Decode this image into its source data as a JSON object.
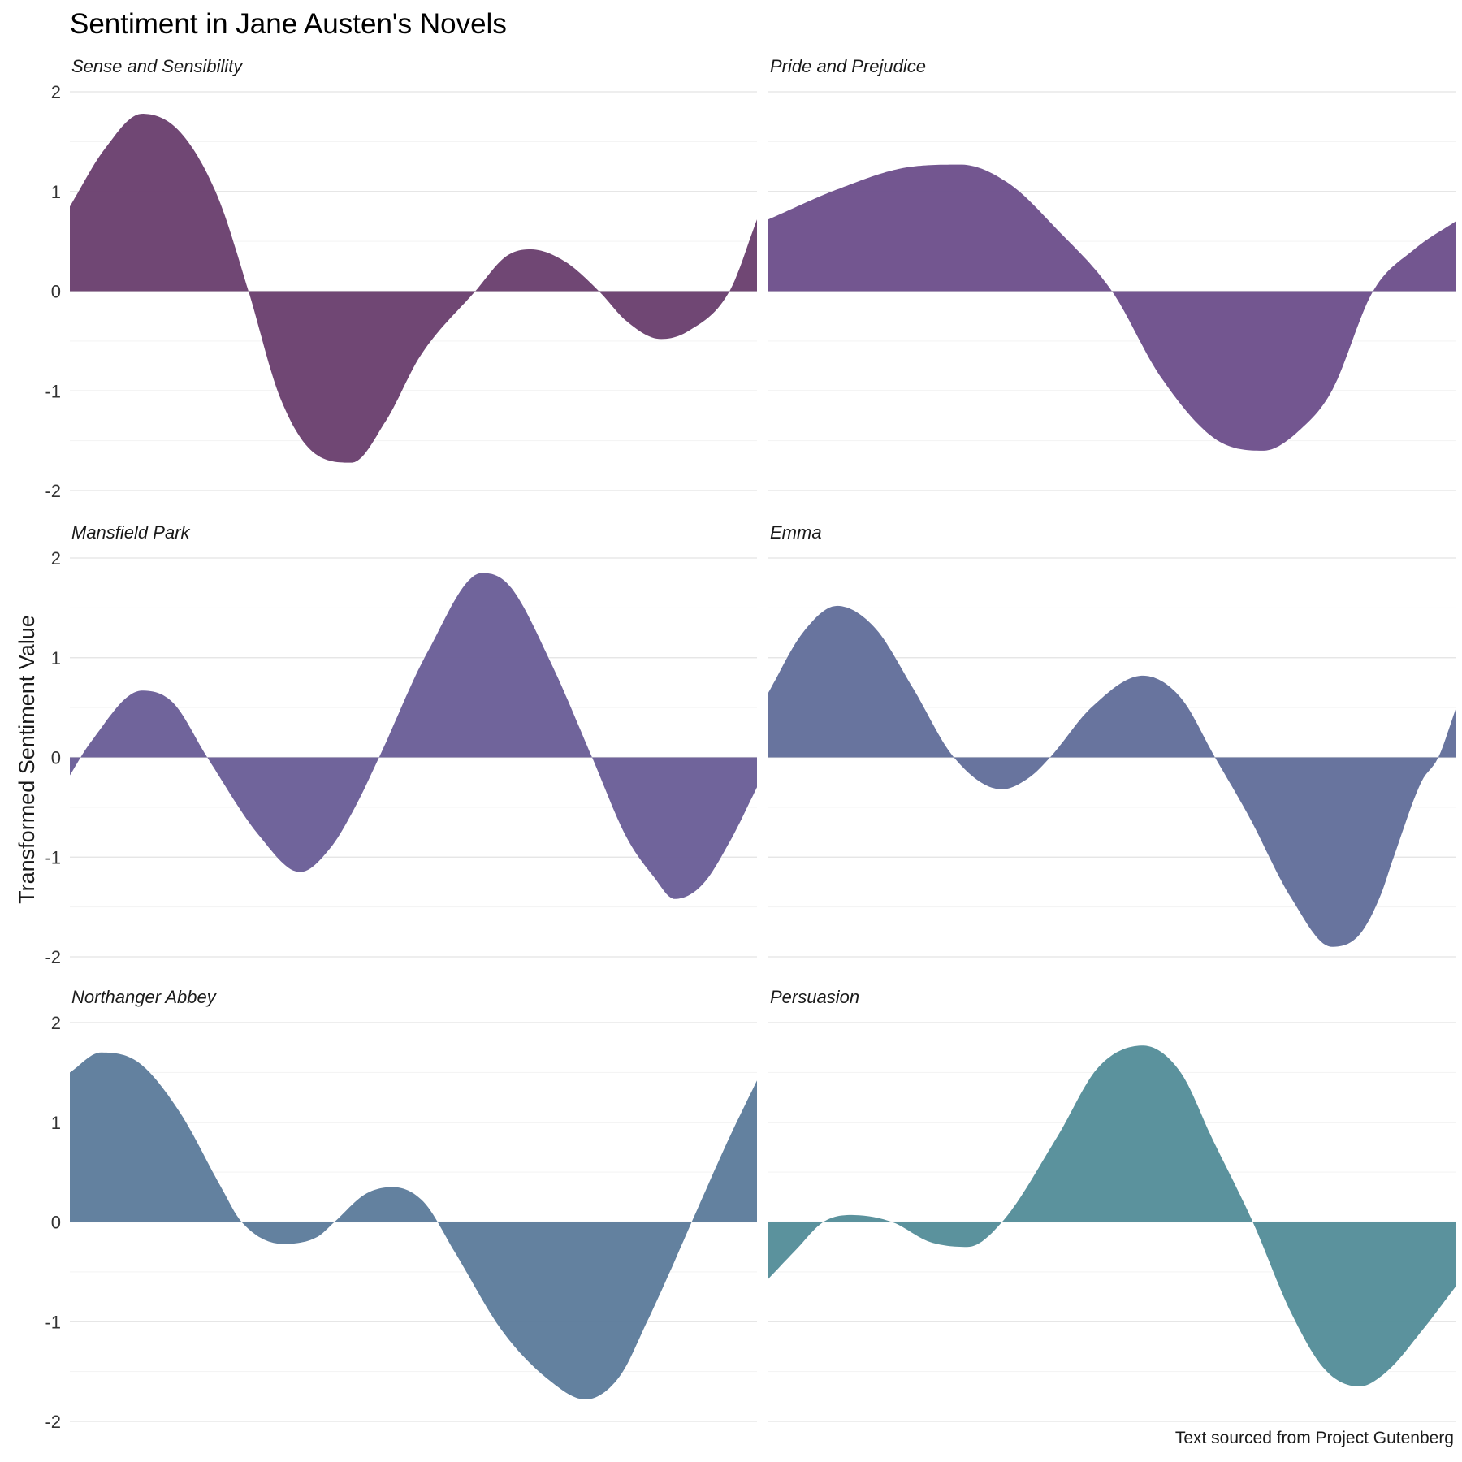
{
  "chart_data": {
    "type": "area",
    "title": "Sentiment in Jane Austen's Novels",
    "xlabel": "",
    "ylabel": "Transformed Sentiment Value",
    "caption": "Text sourced from Project Gutenberg",
    "ylim": [
      -2,
      2
    ],
    "yticks": [
      "2",
      "1",
      "0",
      "-1",
      "-2"
    ],
    "grid": true,
    "x_axis_labels": false,
    "facets": {
      "rows": 3,
      "cols": 2
    },
    "series": [
      {
        "name": "Sense and Sensibility",
        "color": "#6b416f",
        "x": [
          0,
          0.05,
          0.105,
          0.16,
          0.215,
          0.26,
          0.305,
          0.355,
          0.41,
          0.46,
          0.51,
          0.59,
          0.635,
          0.67,
          0.72,
          0.77,
          0.81,
          0.86,
          0.9,
          0.96,
          1
        ],
        "y": [
          0.85,
          1.42,
          1.78,
          1.6,
          0.95,
          0.0,
          -1.05,
          -1.62,
          -1.72,
          -1.3,
          -0.65,
          0.0,
          0.35,
          0.42,
          0.3,
          0.0,
          -0.3,
          -0.48,
          -0.4,
          0.0,
          0.72
        ]
      },
      {
        "name": "Pride and Prejudice",
        "color": "#6e518c",
        "x": [
          0,
          0.1,
          0.2,
          0.28,
          0.35,
          0.42,
          0.5,
          0.57,
          0.65,
          0.72,
          0.78,
          0.82,
          0.88,
          0.94,
          1
        ],
        "y": [
          0.72,
          1.02,
          1.24,
          1.27,
          1.08,
          0.62,
          0.0,
          -0.85,
          -1.48,
          -1.6,
          -1.35,
          -1.0,
          0.0,
          0.42,
          0.7
        ]
      },
      {
        "name": "Mansfield Park",
        "color": "#6b5f98",
        "x": [
          0,
          0.03,
          0.105,
          0.15,
          0.2,
          0.275,
          0.335,
          0.38,
          0.415,
          0.45,
          0.52,
          0.6,
          0.64,
          0.7,
          0.76,
          0.81,
          0.85,
          0.88,
          0.92,
          0.96,
          1
        ],
        "y": [
          -0.18,
          0.15,
          0.67,
          0.55,
          0.0,
          -0.78,
          -1.15,
          -0.9,
          -0.5,
          0.0,
          1.05,
          1.85,
          1.72,
          0.95,
          0.0,
          -0.8,
          -1.2,
          -1.42,
          -1.28,
          -0.85,
          -0.3
        ]
      },
      {
        "name": "Emma",
        "color": "#636f9b",
        "x": [
          0,
          0.05,
          0.1,
          0.155,
          0.21,
          0.27,
          0.34,
          0.38,
          0.41,
          0.47,
          0.545,
          0.6,
          0.65,
          0.7,
          0.76,
          0.82,
          0.86,
          0.89,
          0.91,
          0.95,
          0.975,
          1
        ],
        "y": [
          0.65,
          1.25,
          1.52,
          1.3,
          0.7,
          0.0,
          -0.32,
          -0.2,
          0.0,
          0.5,
          0.82,
          0.6,
          0.0,
          -0.6,
          -1.4,
          -1.9,
          -1.78,
          -1.4,
          -1.0,
          -0.25,
          0.0,
          0.48
        ]
      },
      {
        "name": "Northanger Abbey",
        "color": "#5e7d9c",
        "x": [
          0,
          0.045,
          0.1,
          0.16,
          0.22,
          0.25,
          0.31,
          0.36,
          0.385,
          0.43,
          0.47,
          0.515,
          0.56,
          0.63,
          0.7,
          0.75,
          0.8,
          0.84,
          0.87,
          0.905,
          0.96,
          1
        ],
        "y": [
          1.5,
          1.7,
          1.6,
          1.1,
          0.35,
          0.0,
          -0.22,
          -0.15,
          0.0,
          0.28,
          0.35,
          0.2,
          -0.3,
          -1.1,
          -1.6,
          -1.78,
          -1.55,
          -1.0,
          -0.55,
          0.0,
          0.85,
          1.42
        ]
      },
      {
        "name": "Persuasion",
        "color": "#568e9a",
        "x": [
          0,
          0.04,
          0.08,
          0.12,
          0.18,
          0.235,
          0.29,
          0.34,
          0.42,
          0.48,
          0.545,
          0.6,
          0.645,
          0.705,
          0.76,
          0.81,
          0.86,
          0.9,
          0.95,
          1
        ],
        "y": [
          -0.57,
          -0.28,
          0.0,
          0.07,
          0.0,
          -0.2,
          -0.25,
          0.0,
          0.85,
          1.55,
          1.77,
          1.5,
          0.85,
          0.0,
          -0.9,
          -1.48,
          -1.65,
          -1.5,
          -1.1,
          -0.65
        ]
      }
    ]
  }
}
